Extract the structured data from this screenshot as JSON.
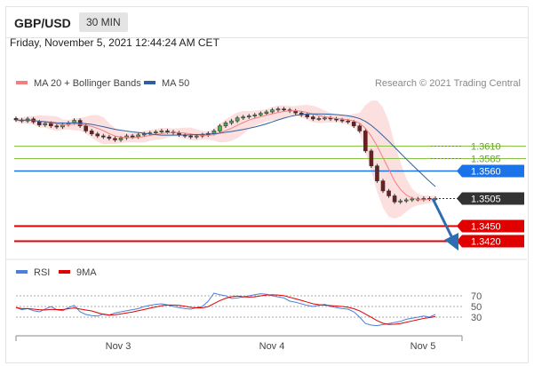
{
  "header": {
    "symbol": "GBP/USD",
    "timeframe": "30 MIN"
  },
  "datetime": "Friday, November 5, 2021 12:44:24 AM CET",
  "legend": [
    {
      "label": "MA 20 + Bollinger Bands",
      "color": "#f08080"
    },
    {
      "label": "MA 50",
      "color": "#2f5f9e"
    }
  ],
  "copyright": "Research © 2021 Trading Central",
  "chart_data": {
    "type": "line",
    "title": "",
    "price_axis": {
      "min": 1.339,
      "max": 1.371
    },
    "series_close": [
      1.3662,
      1.366,
      1.3664,
      1.3658,
      1.3652,
      1.3655,
      1.365,
      1.3648,
      1.3653,
      1.3656,
      1.3661,
      1.365,
      1.364,
      1.3634,
      1.363,
      1.3628,
      1.3625,
      1.3622,
      1.3626,
      1.363,
      1.3628,
      1.3632,
      1.3634,
      1.3636,
      1.3638,
      1.364,
      1.3638,
      1.3636,
      1.3632,
      1.363,
      1.3628,
      1.363,
      1.3632,
      1.3635,
      1.364,
      1.365,
      1.3656,
      1.366,
      1.3666,
      1.3668,
      1.367,
      1.3672,
      1.3675,
      1.3678,
      1.3682,
      1.3684,
      1.3682,
      1.368,
      1.3676,
      1.3672,
      1.3668,
      1.3664,
      1.3665,
      1.3666,
      1.3664,
      1.3662,
      1.366,
      1.3658,
      1.365,
      1.364,
      1.36,
      1.357,
      1.354,
      1.352,
      1.351,
      1.3498,
      1.35,
      1.3502,
      1.3504,
      1.3503,
      1.3505,
      1.3504,
      1.3505
    ],
    "levels": [
      {
        "value": "1.3610",
        "kind": "resistance-green",
        "color": "#8bc34a"
      },
      {
        "value": "1.3585",
        "kind": "resistance-green",
        "color": "#8bc34a"
      },
      {
        "value": "1.3560",
        "kind": "pivot",
        "color": "#1a73e8"
      },
      {
        "value": "1.3505",
        "kind": "last",
        "color": "#333333"
      },
      {
        "value": "1.3450",
        "kind": "support",
        "color": "#e00000"
      },
      {
        "value": "1.3420",
        "kind": "support",
        "color": "#e00000"
      }
    ],
    "x_ticks": [
      "Nov 3",
      "Nov 4",
      "Nov 5"
    ]
  },
  "rsi": {
    "legend": [
      {
        "label": "RSI",
        "color": "#4d7fd6"
      },
      {
        "label": "9MA",
        "color": "#e00000"
      }
    ],
    "levels": [
      "70",
      "50",
      "30"
    ],
    "range": [
      0,
      100
    ],
    "values": [
      48,
      44,
      46,
      42,
      40,
      45,
      50,
      44,
      42,
      48,
      52,
      40,
      35,
      33,
      32,
      36,
      34,
      38,
      40,
      42,
      44,
      46,
      50,
      52,
      54,
      55,
      53,
      50,
      48,
      46,
      45,
      48,
      50,
      60,
      75,
      72,
      70,
      65,
      66,
      68,
      70,
      72,
      74,
      73,
      70,
      68,
      66,
      60,
      58,
      55,
      52,
      50,
      52,
      54,
      50,
      48,
      46,
      45,
      40,
      30,
      18,
      15,
      14,
      16,
      18,
      20,
      22,
      26,
      28,
      30,
      32,
      30,
      35
    ]
  }
}
